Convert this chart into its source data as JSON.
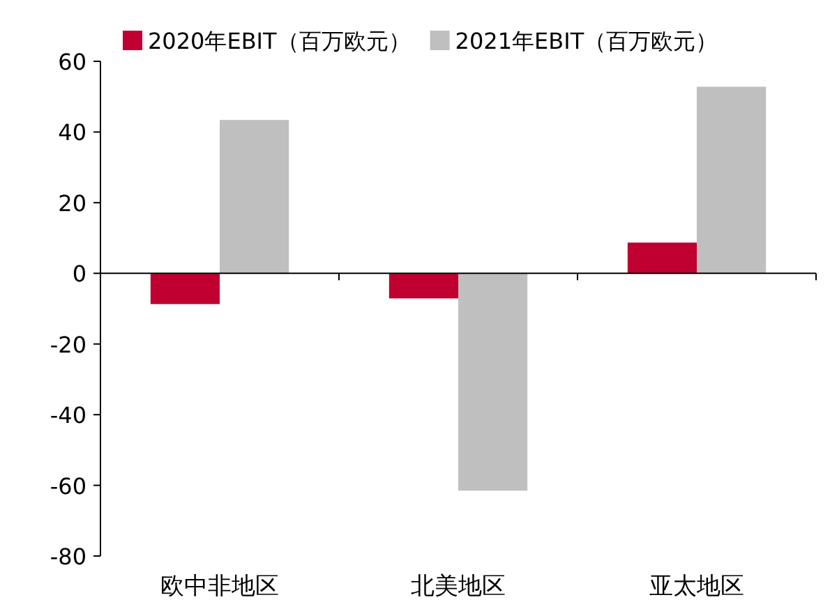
{
  "chart_data": {
    "type": "bar",
    "categories": [
      "欧中非地区",
      "北美地区",
      "亚太地区"
    ],
    "series": [
      {
        "name": "2020年EBIT（百万欧元）",
        "color": "#c00030",
        "values": [
          -8.7,
          -7.1,
          8.7
        ]
      },
      {
        "name": "2021年EBIT（百万欧元）",
        "color": "#bfbfbf",
        "values": [
          43.4,
          -61.5,
          52.8
        ]
      }
    ],
    "ylim": [
      -80,
      60
    ],
    "yticks": [
      -80,
      -60,
      -40,
      -20,
      0,
      20,
      40,
      60
    ],
    "legend": "top"
  }
}
